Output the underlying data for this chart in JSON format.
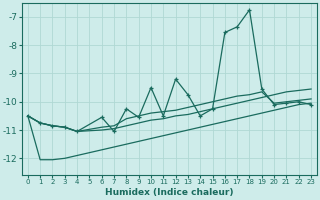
{
  "xlabel": "Humidex (Indice chaleur)",
  "bg_color": "#ceecea",
  "grid_color": "#b0d8d4",
  "line_color": "#1a6b5e",
  "xlim": [
    -0.5,
    23.5
  ],
  "ylim": [
    -12.6,
    -6.5
  ],
  "yticks": [
    -12,
    -11,
    -10,
    -9,
    -8,
    -7
  ],
  "xticks": [
    0,
    1,
    2,
    3,
    4,
    5,
    6,
    7,
    8,
    9,
    10,
    11,
    12,
    13,
    14,
    15,
    16,
    17,
    18,
    19,
    20,
    21,
    22,
    23
  ],
  "line1_x": [
    0,
    1,
    2,
    3,
    4,
    6,
    7,
    8,
    9,
    10,
    11,
    12,
    13,
    14,
    15,
    16,
    17,
    18,
    19,
    20,
    21,
    22,
    23
  ],
  "line1_y": [
    -10.5,
    -10.75,
    -10.85,
    -10.9,
    -11.05,
    -10.55,
    -11.05,
    -10.25,
    -10.55,
    -9.5,
    -10.5,
    -9.2,
    -9.75,
    -10.5,
    -10.25,
    -7.55,
    -7.35,
    -6.75,
    -9.55,
    -10.1,
    -10.05,
    -10.0,
    -10.1
  ],
  "line2_x": [
    0,
    1,
    2,
    3,
    4,
    6,
    7,
    8,
    9,
    10,
    11,
    12,
    13,
    14,
    15,
    16,
    17,
    18,
    19,
    20,
    21,
    22,
    23
  ],
  "line2_y": [
    -10.5,
    -10.75,
    -10.85,
    -10.9,
    -11.05,
    -10.9,
    -10.85,
    -10.6,
    -10.5,
    -10.4,
    -10.35,
    -10.3,
    -10.2,
    -10.1,
    -10.0,
    -9.9,
    -9.8,
    -9.75,
    -9.65,
    -10.05,
    -10.0,
    -9.95,
    -9.9
  ],
  "line3_x": [
    0,
    1,
    2,
    3,
    4,
    6,
    7,
    8,
    9,
    10,
    11,
    12,
    13,
    14,
    15,
    16,
    17,
    18,
    19,
    20,
    21,
    22,
    23
  ],
  "line3_y": [
    -10.5,
    -10.75,
    -10.85,
    -10.9,
    -11.05,
    -11.0,
    -10.95,
    -10.85,
    -10.75,
    -10.65,
    -10.6,
    -10.5,
    -10.45,
    -10.35,
    -10.25,
    -10.15,
    -10.05,
    -9.95,
    -9.85,
    -9.75,
    -9.65,
    -9.6,
    -9.55
  ],
  "line4_x": [
    0,
    1,
    2,
    3,
    4,
    6,
    7,
    8,
    9,
    10,
    11,
    12,
    13,
    14,
    15,
    16,
    17,
    18,
    19,
    20,
    21,
    22,
    23
  ],
  "line4_y": [
    -10.5,
    -12.05,
    -12.05,
    -12.0,
    -11.9,
    -11.7,
    -11.6,
    -11.5,
    -11.4,
    -11.3,
    -11.2,
    -11.1,
    -11.0,
    -10.9,
    -10.8,
    -10.7,
    -10.6,
    -10.5,
    -10.4,
    -10.3,
    -10.2,
    -10.1,
    -10.05
  ]
}
